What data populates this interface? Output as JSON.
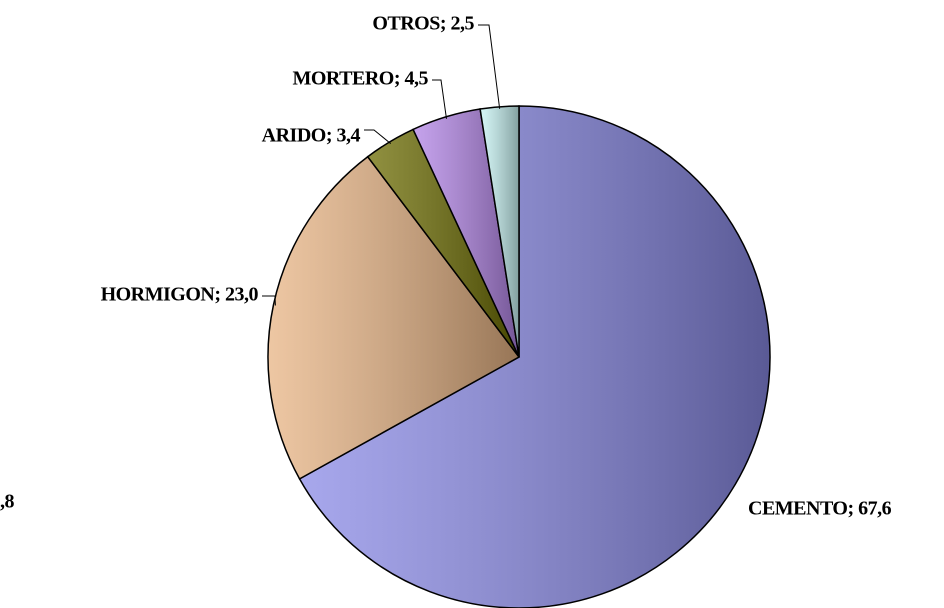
{
  "chart_data": {
    "type": "pie",
    "values": [
      67.6,
      23.0,
      3.4,
      4.5,
      2.5
    ],
    "value_labels": [
      "CEMENTO; 67,6",
      "HORMIGON; 23,0",
      "ARIDO; 3,4",
      "MORTERO; 4,5",
      "OTROS; 2,5"
    ],
    "colors": [
      "#8a8ae6",
      "#e8b484",
      "#6b6b00",
      "#b284e6",
      "#c8f4f4"
    ],
    "annotation": ",8"
  }
}
